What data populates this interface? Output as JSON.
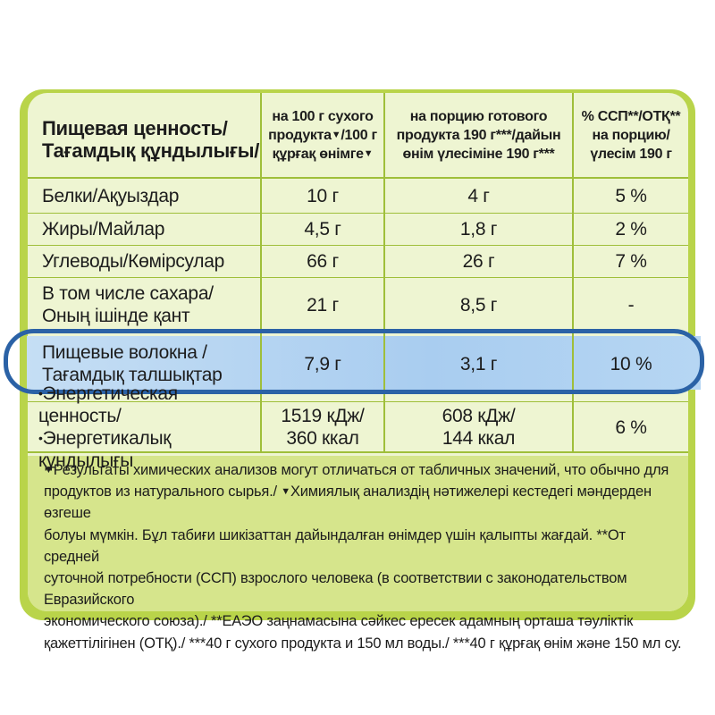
{
  "header": {
    "col1": [
      "Пищевая ценность/",
      "Тағамдық құндылығы/"
    ],
    "col2": [
      "на 100 г сухого",
      "продукта",
      "/100 г",
      "құрғақ өнімге"
    ],
    "col3": [
      "на порцию готового",
      "продукта 190 г***/дайын",
      "өнім үлесіміне 190 г***"
    ],
    "col4": [
      "% ССП**/ОТҚ**",
      "на порцию/",
      "үлесім 190 г"
    ],
    "marker": "▼"
  },
  "rows": [
    {
      "label": [
        "Белки/Ақуыздар"
      ],
      "per100": "10 г",
      "portion": "4 г",
      "pct": "5 %"
    },
    {
      "label": [
        "Жиры/Майлар"
      ],
      "per100": "4,5 г",
      "portion": "1,8 г",
      "pct": "2 %"
    },
    {
      "label": [
        "Углеводы/Көмірсулар"
      ],
      "per100": "66 г",
      "portion": "26 г",
      "pct": "7 %"
    },
    {
      "label": [
        "В том числе сахара/",
        "Оның ішінде қант"
      ],
      "per100": "21 г",
      "portion": "8,5 г",
      "pct": "-"
    },
    {
      "label": [
        "Пищевые волокна /",
        "Тағамдық талшықтар"
      ],
      "per100": "7,9  г",
      "portion": "3,1 г",
      "pct": "10 %"
    },
    {
      "label": [
        "Энергетическая ценность/",
        "Энергетикалық құндылығы"
      ],
      "per100": [
        "1519 кДж/",
        "360 ккал"
      ],
      "portion": [
        "608 кДж/",
        "144 ккал"
      ],
      "pct": "6 %"
    }
  ],
  "footnote": {
    "marker": "▼",
    "lines": [
      "Результаты химических анализов могут отличаться от табличных значений, что обычно для",
      "продуктов из натурального сырья./ ",
      "Химиялық анализдің нәтижелері кестедегі мәндерден өзгеше",
      "болуы мүмкін. Бұл табиғи шикізаттан дайындалған өнімдер үшін қалыпты жағдай. **От средней",
      "суточной потребности (ССП) взрослого человека (в соответствии с законодательством Евразийского",
      "экономического союза)./  **ЕАЭО заңнамасына сәйкес ересек адамның орташа тәуліктік",
      "қажеттілігінен (ОТҚ)./ ***40 г сухого продукта и 150 мл воды./ ***40 г құрғақ өнім және 150 мл су."
    ]
  },
  "colors": {
    "green_frame": "#b9d44a",
    "panel": "#eef5d2",
    "footer_band": "#d6e58c",
    "highlight": "#a9cdf0",
    "ring": "#2b62a6"
  }
}
